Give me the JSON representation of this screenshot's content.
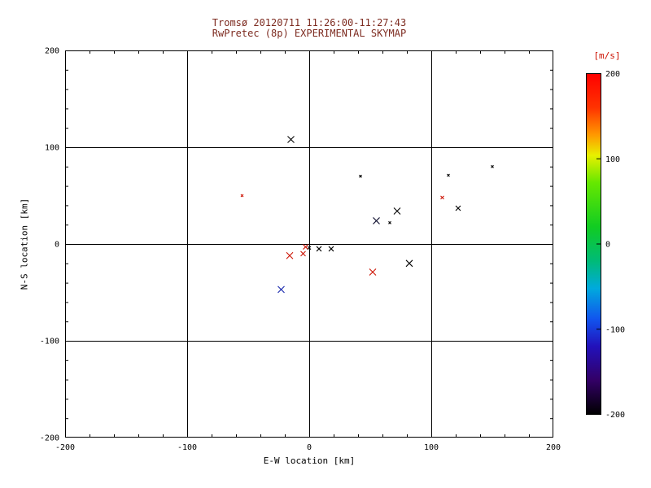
{
  "title": {
    "line1": "Tromsø 20120711 11:26:00-11:27:43",
    "line2": "RwPretec (8p) EXPERIMENTAL SKYMAP",
    "color": "#7d2b20"
  },
  "chart_data": {
    "type": "scatter",
    "title": "Tromsø 20120711 11:26:00-11:27:43 / RwPretec (8p) EXPERIMENTAL SKYMAP",
    "xlabel": "E-W location [km]",
    "ylabel": "N-S location [km]",
    "xlim": [
      -200,
      200
    ],
    "ylim": [
      -200,
      200
    ],
    "xticks": [
      -200,
      -100,
      0,
      100,
      200
    ],
    "yticks": [
      -200,
      -100,
      0,
      100,
      200
    ],
    "minor_tick_step": 20,
    "grid": true,
    "marker_symbol": "x",
    "points": [
      {
        "x": -15,
        "y": 108,
        "color": "#000000",
        "size": 4,
        "v_mps": -200
      },
      {
        "x": 42,
        "y": 70,
        "color": "#000000",
        "size": 1.5,
        "v_mps": -200
      },
      {
        "x": 114,
        "y": 71,
        "color": "#000000",
        "size": 1.5,
        "v_mps": -200
      },
      {
        "x": 150,
        "y": 80,
        "color": "#000000",
        "size": 1.5,
        "v_mps": -200
      },
      {
        "x": -55,
        "y": 50,
        "color": "#cc1100",
        "size": 1.5,
        "v_mps": 190
      },
      {
        "x": 109,
        "y": 48,
        "color": "#cc1100",
        "size": 2,
        "v_mps": 190
      },
      {
        "x": 122,
        "y": 37,
        "color": "#000000",
        "size": 3,
        "v_mps": -200
      },
      {
        "x": 72,
        "y": 34,
        "color": "#000000",
        "size": 4,
        "v_mps": -200
      },
      {
        "x": 55,
        "y": 24,
        "color": "#101030",
        "size": 4,
        "v_mps": -195
      },
      {
        "x": 66,
        "y": 22,
        "color": "#000000",
        "size": 1.5,
        "v_mps": -200
      },
      {
        "x": -3,
        "y": -3,
        "color": "#cc1100",
        "size": 3,
        "v_mps": 190
      },
      {
        "x": 0,
        "y": -4,
        "color": "#000000",
        "size": 2,
        "v_mps": -200
      },
      {
        "x": 8,
        "y": -5,
        "color": "#000000",
        "size": 3,
        "v_mps": -200
      },
      {
        "x": 18,
        "y": -5,
        "color": "#000000",
        "size": 3,
        "v_mps": -200
      },
      {
        "x": -16,
        "y": -12,
        "color": "#cc1100",
        "size": 4,
        "v_mps": 190
      },
      {
        "x": -5,
        "y": -10,
        "color": "#cc1100",
        "size": 3,
        "v_mps": 190
      },
      {
        "x": 82,
        "y": -20,
        "color": "#000000",
        "size": 4,
        "v_mps": -200
      },
      {
        "x": 52,
        "y": -29,
        "color": "#cc1100",
        "size": 4,
        "v_mps": 190
      },
      {
        "x": -23,
        "y": -47,
        "color": "#2030b0",
        "size": 4,
        "v_mps": -115
      }
    ],
    "colorbar": {
      "label": "[m/s]",
      "label_color": "#cc1100",
      "min": -200,
      "max": 200,
      "ticks": [
        200,
        100,
        0,
        -100,
        -200
      ],
      "stops": [
        {
          "pos": 0.0,
          "color": "#ff0000"
        },
        {
          "pos": 0.1,
          "color": "#ff3300"
        },
        {
          "pos": 0.18,
          "color": "#ff9900"
        },
        {
          "pos": 0.24,
          "color": "#e8f000"
        },
        {
          "pos": 0.32,
          "color": "#66e800"
        },
        {
          "pos": 0.45,
          "color": "#11cc22"
        },
        {
          "pos": 0.55,
          "color": "#00bb77"
        },
        {
          "pos": 0.63,
          "color": "#00aadd"
        },
        {
          "pos": 0.72,
          "color": "#1155ee"
        },
        {
          "pos": 0.8,
          "color": "#2211bb"
        },
        {
          "pos": 0.9,
          "color": "#330066"
        },
        {
          "pos": 1.0,
          "color": "#000000"
        }
      ]
    }
  }
}
